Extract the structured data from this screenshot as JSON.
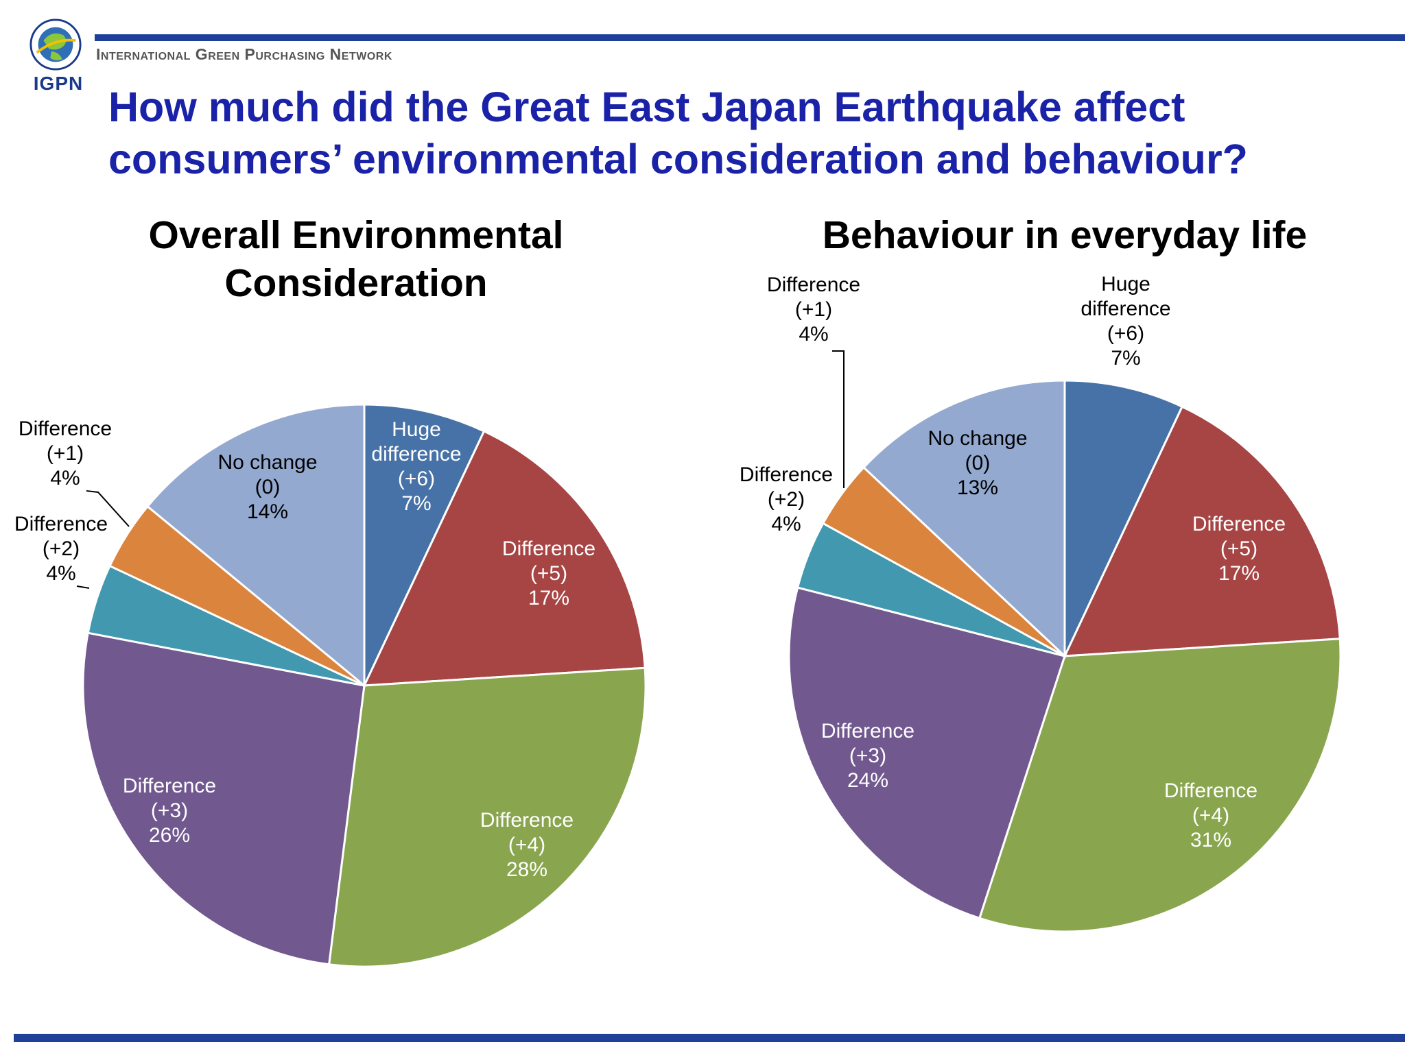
{
  "header": {
    "logo_text": "IGPN",
    "org_name": "International Green Purchasing Network",
    "title_line1": "How much did the Great East Japan Earthquake affect",
    "title_line2": "consumers’ environmental consideration and behaviour?"
  },
  "colors": {
    "rule": "#1f3f9a",
    "title": "#1a22a8"
  },
  "chart_data": [
    {
      "type": "pie",
      "title_lines": [
        "Overall Environmental",
        "Consideration"
      ],
      "slices": [
        {
          "label_lines": [
            "Huge",
            "difference",
            "(+6)"
          ],
          "value": 7,
          "pct_label": "7%",
          "color": "#4672a8"
        },
        {
          "label_lines": [
            "Difference",
            "(+5)"
          ],
          "value": 17,
          "pct_label": "17%",
          "color": "#a74444"
        },
        {
          "label_lines": [
            "Difference",
            "(+4)"
          ],
          "value": 28,
          "pct_label": "28%",
          "color": "#89a54e"
        },
        {
          "label_lines": [
            "Difference",
            "(+3)"
          ],
          "value": 26,
          "pct_label": "26%",
          "color": "#71588f"
        },
        {
          "label_lines": [
            "Difference",
            "(+2)"
          ],
          "value": 4,
          "pct_label": "4%",
          "color": "#4198af"
        },
        {
          "label_lines": [
            "Difference",
            "(+1)"
          ],
          "value": 4,
          "pct_label": "4%",
          "color": "#db843d"
        },
        {
          "label_lines": [
            "No change",
            "(0)"
          ],
          "value": 14,
          "pct_label": "14%",
          "color": "#93a9d0"
        }
      ]
    },
    {
      "type": "pie",
      "title_lines": [
        "Behaviour in everyday life"
      ],
      "slices": [
        {
          "label_lines": [
            "Huge",
            "difference",
            "(+6)"
          ],
          "value": 7,
          "pct_label": "7%",
          "color": "#4672a8"
        },
        {
          "label_lines": [
            "Difference",
            "(+5)"
          ],
          "value": 17,
          "pct_label": "17%",
          "color": "#a74444"
        },
        {
          "label_lines": [
            "Difference",
            "(+4)"
          ],
          "value": 31,
          "pct_label": "31%",
          "color": "#89a54e"
        },
        {
          "label_lines": [
            "Difference",
            "(+3)"
          ],
          "value": 24,
          "pct_label": "24%",
          "color": "#71588f"
        },
        {
          "label_lines": [
            "Difference",
            "(+2)"
          ],
          "value": 4,
          "pct_label": "4%",
          "color": "#4198af"
        },
        {
          "label_lines": [
            "Difference",
            "(+1)"
          ],
          "value": 4,
          "pct_label": "4%",
          "color": "#db843d"
        },
        {
          "label_lines": [
            "No change",
            "(0)"
          ],
          "value": 13,
          "pct_label": "13%",
          "color": "#93a9d0"
        }
      ]
    }
  ]
}
